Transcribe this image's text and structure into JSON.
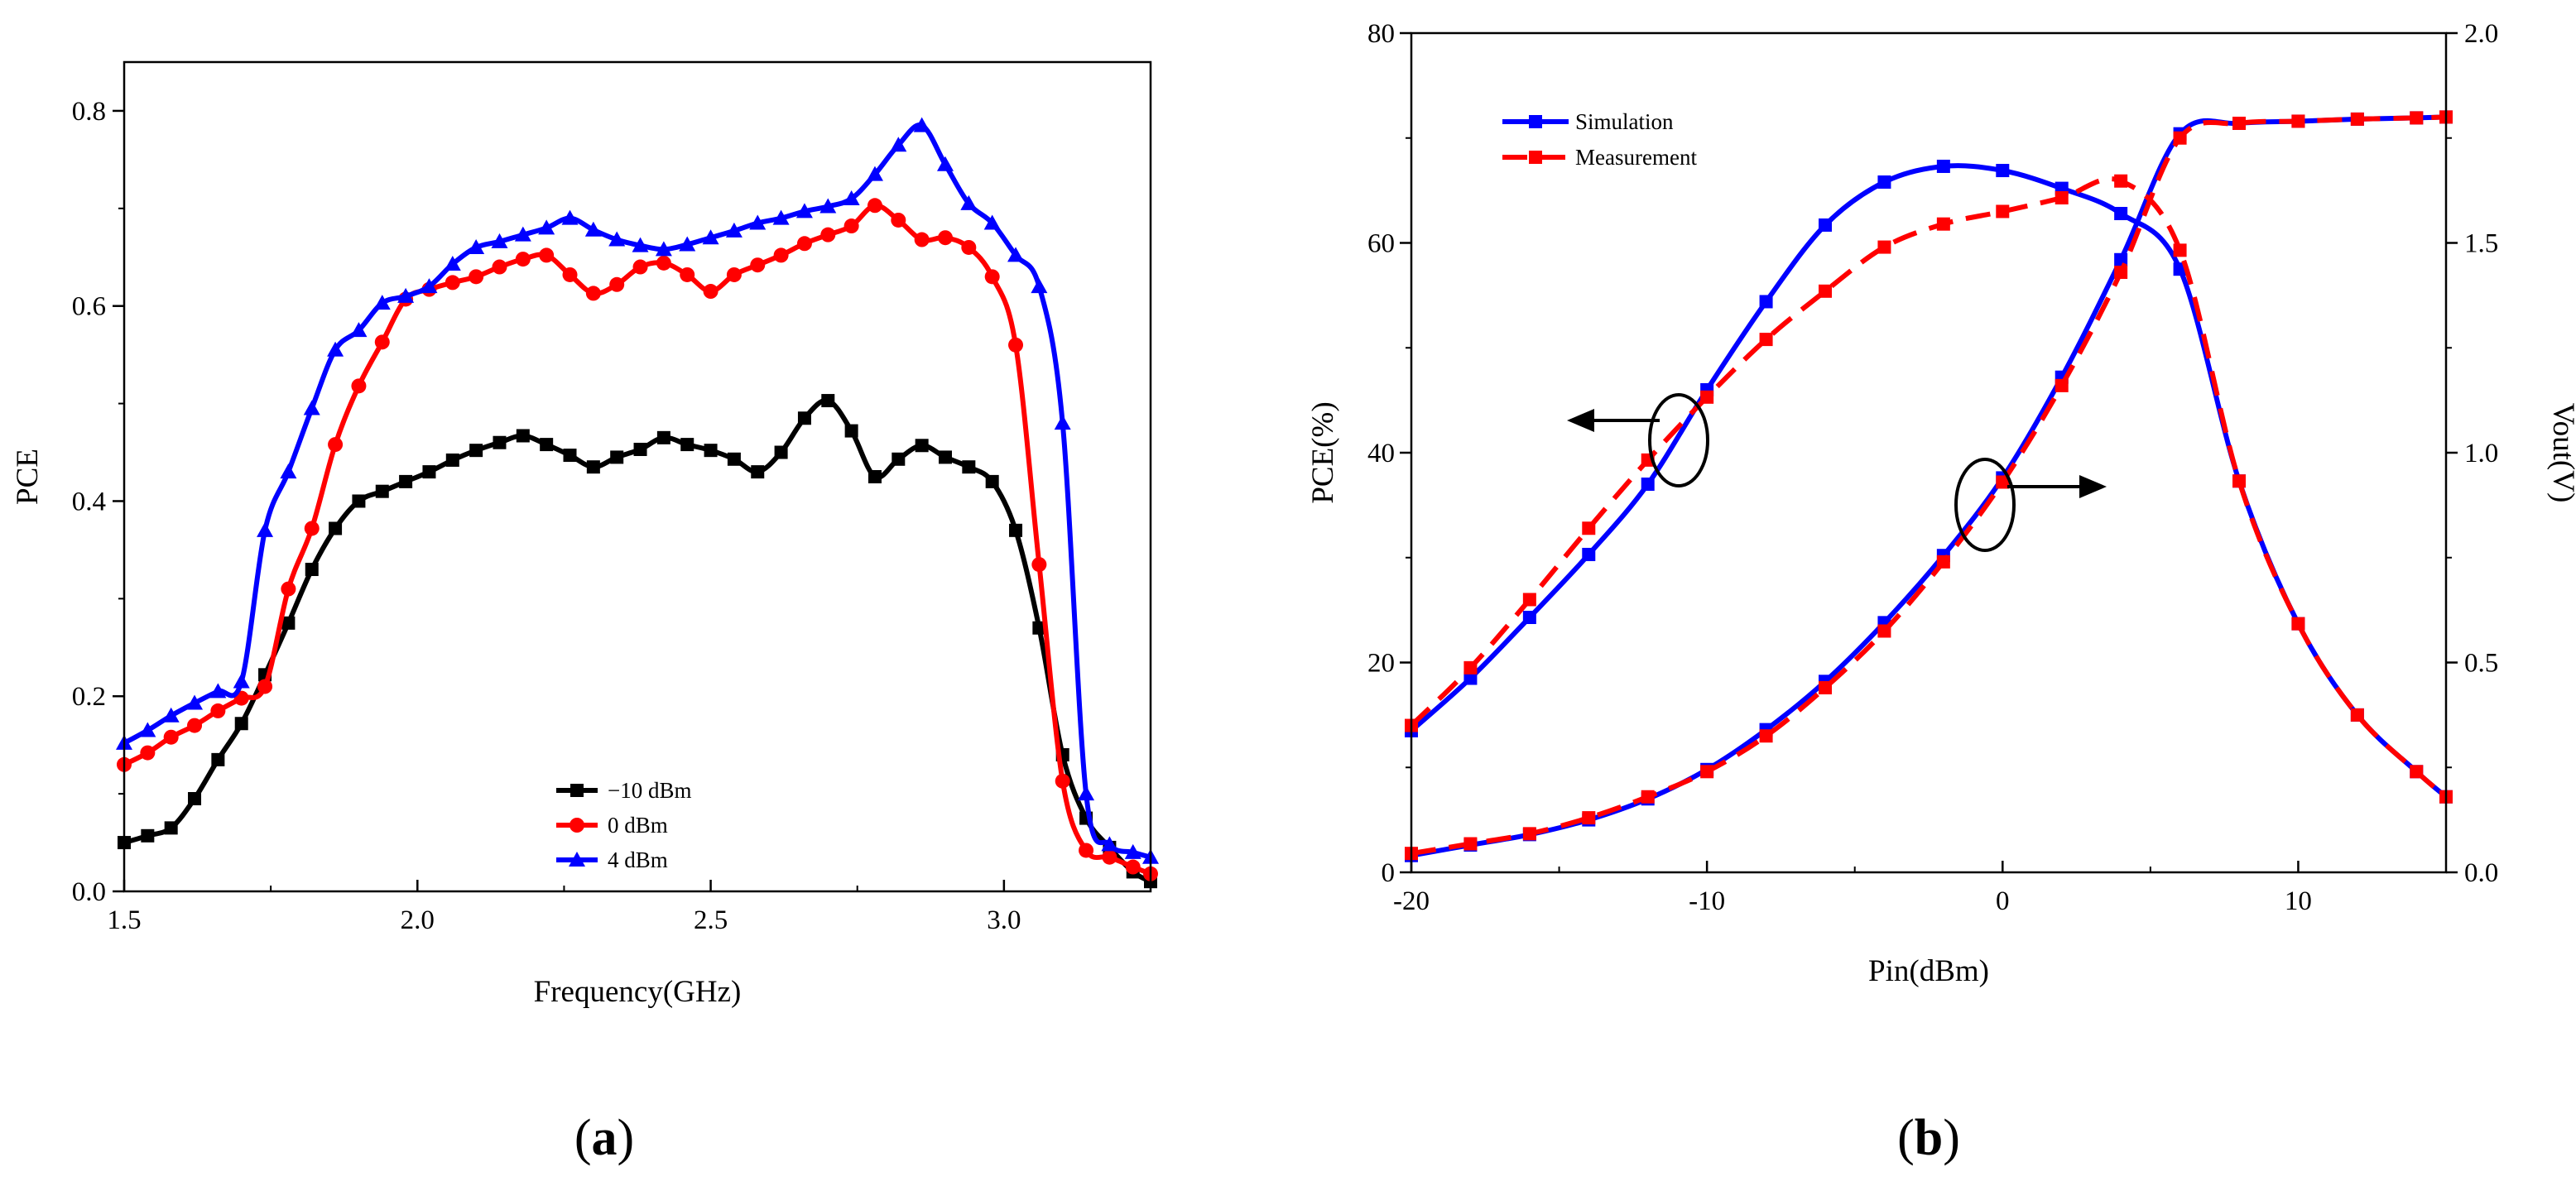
{
  "chart_data": [
    {
      "id": "a",
      "type": "line",
      "panel_label": {
        "open": "(",
        "letter": "a",
        "close": ")"
      },
      "xlabel": "Frequency(GHz)",
      "ylabel": "PCE",
      "xlim": [
        1.5,
        3.25
      ],
      "ylim": [
        0.0,
        0.85
      ],
      "xticks": [
        1.5,
        2.0,
        2.5,
        3.0
      ],
      "xtick_labels": [
        "1.5",
        "2.0",
        "2.5",
        "3.0"
      ],
      "yticks": [
        0.0,
        0.2,
        0.4,
        0.6,
        0.8
      ],
      "ytick_labels": [
        "0.0",
        "0.2",
        "0.4",
        "0.6",
        "0.8"
      ],
      "legend_position": "bottom-center",
      "series": [
        {
          "name": "−10 dBm",
          "color": "#000000",
          "marker": "square",
          "x": [
            1.5,
            1.54,
            1.58,
            1.62,
            1.66,
            1.7,
            1.74,
            1.78,
            1.82,
            1.86,
            1.9,
            1.94,
            1.98,
            2.02,
            2.06,
            2.1,
            2.14,
            2.18,
            2.22,
            2.26,
            2.3,
            2.34,
            2.38,
            2.42,
            2.46,
            2.5,
            2.54,
            2.58,
            2.62,
            2.66,
            2.7,
            2.74,
            2.78,
            2.82,
            2.86,
            2.9,
            2.94,
            2.98,
            3.02,
            3.06,
            3.1,
            3.14,
            3.18,
            3.22,
            3.25
          ],
          "y": [
            0.05,
            0.057,
            0.065,
            0.095,
            0.135,
            0.172,
            0.222,
            0.275,
            0.33,
            0.372,
            0.4,
            0.41,
            0.42,
            0.43,
            0.442,
            0.452,
            0.46,
            0.467,
            0.458,
            0.447,
            0.435,
            0.445,
            0.453,
            0.465,
            0.458,
            0.452,
            0.443,
            0.43,
            0.45,
            0.485,
            0.503,
            0.472,
            0.425,
            0.443,
            0.457,
            0.445,
            0.435,
            0.42,
            0.37,
            0.27,
            0.14,
            0.075,
            0.045,
            0.02,
            0.01
          ]
        },
        {
          "name": "0 dBm",
          "color": "#ff0000",
          "marker": "circle",
          "x": [
            1.5,
            1.54,
            1.58,
            1.62,
            1.66,
            1.7,
            1.74,
            1.78,
            1.82,
            1.86,
            1.9,
            1.94,
            1.98,
            2.02,
            2.06,
            2.1,
            2.14,
            2.18,
            2.22,
            2.26,
            2.3,
            2.34,
            2.38,
            2.42,
            2.46,
            2.5,
            2.54,
            2.58,
            2.62,
            2.66,
            2.7,
            2.74,
            2.78,
            2.82,
            2.86,
            2.9,
            2.94,
            2.98,
            3.02,
            3.06,
            3.1,
            3.14,
            3.18,
            3.22,
            3.25
          ],
          "y": [
            0.13,
            0.142,
            0.158,
            0.17,
            0.185,
            0.198,
            0.21,
            0.31,
            0.372,
            0.458,
            0.518,
            0.563,
            0.607,
            0.617,
            0.624,
            0.63,
            0.64,
            0.648,
            0.652,
            0.632,
            0.613,
            0.622,
            0.64,
            0.644,
            0.632,
            0.615,
            0.632,
            0.642,
            0.652,
            0.664,
            0.673,
            0.682,
            0.703,
            0.688,
            0.668,
            0.67,
            0.66,
            0.63,
            0.56,
            0.335,
            0.113,
            0.042,
            0.035,
            0.025,
            0.018
          ]
        },
        {
          "name": "4 dBm",
          "color": "#0000ff",
          "marker": "triangle",
          "x": [
            1.5,
            1.54,
            1.58,
            1.62,
            1.66,
            1.7,
            1.74,
            1.78,
            1.82,
            1.86,
            1.9,
            1.94,
            1.98,
            2.02,
            2.06,
            2.1,
            2.14,
            2.18,
            2.22,
            2.26,
            2.3,
            2.34,
            2.38,
            2.42,
            2.46,
            2.5,
            2.54,
            2.58,
            2.62,
            2.66,
            2.7,
            2.74,
            2.78,
            2.82,
            2.86,
            2.9,
            2.94,
            2.98,
            3.02,
            3.06,
            3.1,
            3.14,
            3.18,
            3.22,
            3.25
          ],
          "y": [
            0.152,
            0.165,
            0.18,
            0.193,
            0.205,
            0.215,
            0.37,
            0.43,
            0.495,
            0.555,
            0.575,
            0.603,
            0.61,
            0.62,
            0.643,
            0.66,
            0.666,
            0.673,
            0.68,
            0.69,
            0.678,
            0.668,
            0.662,
            0.658,
            0.663,
            0.67,
            0.677,
            0.685,
            0.69,
            0.697,
            0.702,
            0.71,
            0.735,
            0.765,
            0.785,
            0.745,
            0.705,
            0.685,
            0.652,
            0.62,
            0.48,
            0.1,
            0.048,
            0.04,
            0.035
          ]
        }
      ]
    },
    {
      "id": "b",
      "type": "line",
      "panel_label": {
        "open": "(",
        "letter": "b",
        "close": ")"
      },
      "xlabel": "Pin(dBm)",
      "ylabel": "PCE(%)",
      "ylabel_right": "Vout(V)",
      "xlim": [
        -20,
        15
      ],
      "ylim": [
        0,
        80
      ],
      "ylim_right": [
        0.0,
        2.0
      ],
      "xticks": [
        -20,
        -10,
        0,
        10
      ],
      "xtick_labels": [
        "-20",
        "-10",
        "0",
        "10"
      ],
      "yticks": [
        0,
        20,
        40,
        60,
        80
      ],
      "ytick_labels": [
        "0",
        "20",
        "40",
        "60",
        "80"
      ],
      "yticks_right": [
        0.0,
        0.5,
        1.0,
        1.5,
        2.0
      ],
      "ytick_labels_right": [
        "0.0",
        "0.5",
        "1.0",
        "1.5",
        "2.0"
      ],
      "legend_position": "top-left",
      "legend": [
        {
          "name": "Simulation",
          "color": "#0000ff",
          "dash": "solid"
        },
        {
          "name": "Measurement",
          "color": "#ff0000",
          "dash": "dashed"
        }
      ],
      "annotations": [
        {
          "text": "",
          "meaning": "ellipse with arrow pointing left: PCE curves read on left axis"
        },
        {
          "text": "",
          "meaning": "ellipse with arrow pointing right: Vout curves read on right axis"
        }
      ],
      "series": [
        {
          "name": "Simulation (PCE)",
          "axis": "left",
          "color": "#0000ff",
          "dash": "solid",
          "x": [
            -20,
            -18,
            -16,
            -14,
            -12,
            -10,
            -8,
            -6,
            -4,
            -2,
            0,
            2,
            4,
            6,
            8,
            10,
            12,
            14,
            15
          ],
          "y": [
            13.5,
            18.5,
            24.3,
            30.3,
            37.0,
            46.0,
            54.4,
            61.7,
            65.8,
            67.3,
            66.9,
            65.2,
            62.8,
            57.5,
            37.3,
            23.7,
            15.0,
            9.6,
            7.2
          ]
        },
        {
          "name": "Measurement (PCE)",
          "axis": "left",
          "color": "#ff0000",
          "dash": "dashed",
          "x": [
            -20,
            -18,
            -16,
            -14,
            -12,
            -10,
            -8,
            -6,
            -4,
            -2,
            0,
            2,
            4,
            6,
            8,
            10,
            12,
            14,
            15
          ],
          "y": [
            14.0,
            19.5,
            26.0,
            32.8,
            39.3,
            45.3,
            50.8,
            55.4,
            59.6,
            61.8,
            63.0,
            64.3,
            65.9,
            59.3,
            37.3,
            23.7,
            15.0,
            9.6,
            7.2
          ]
        },
        {
          "name": "Simulation (Vout)",
          "axis": "right",
          "color": "#0000ff",
          "dash": "solid",
          "x": [
            -20,
            -18,
            -16,
            -14,
            -12,
            -10,
            -8,
            -6,
            -4,
            -2,
            0,
            2,
            4,
            6,
            8,
            10,
            12,
            14,
            15
          ],
          "y": [
            0.04,
            0.065,
            0.09,
            0.125,
            0.175,
            0.245,
            0.34,
            0.455,
            0.595,
            0.755,
            0.94,
            1.18,
            1.46,
            1.76,
            1.785,
            1.79,
            1.795,
            1.798,
            1.8
          ]
        },
        {
          "name": "Measurement (Vout)",
          "axis": "right",
          "color": "#ff0000",
          "dash": "dashed",
          "x": [
            -20,
            -18,
            -16,
            -14,
            -12,
            -10,
            -8,
            -6,
            -4,
            -2,
            0,
            2,
            4,
            6,
            8,
            10,
            12,
            14,
            15
          ],
          "y": [
            0.045,
            0.068,
            0.092,
            0.13,
            0.18,
            0.24,
            0.325,
            0.44,
            0.575,
            0.74,
            0.93,
            1.16,
            1.43,
            1.75,
            1.785,
            1.79,
            1.795,
            1.798,
            1.8
          ]
        }
      ]
    }
  ]
}
